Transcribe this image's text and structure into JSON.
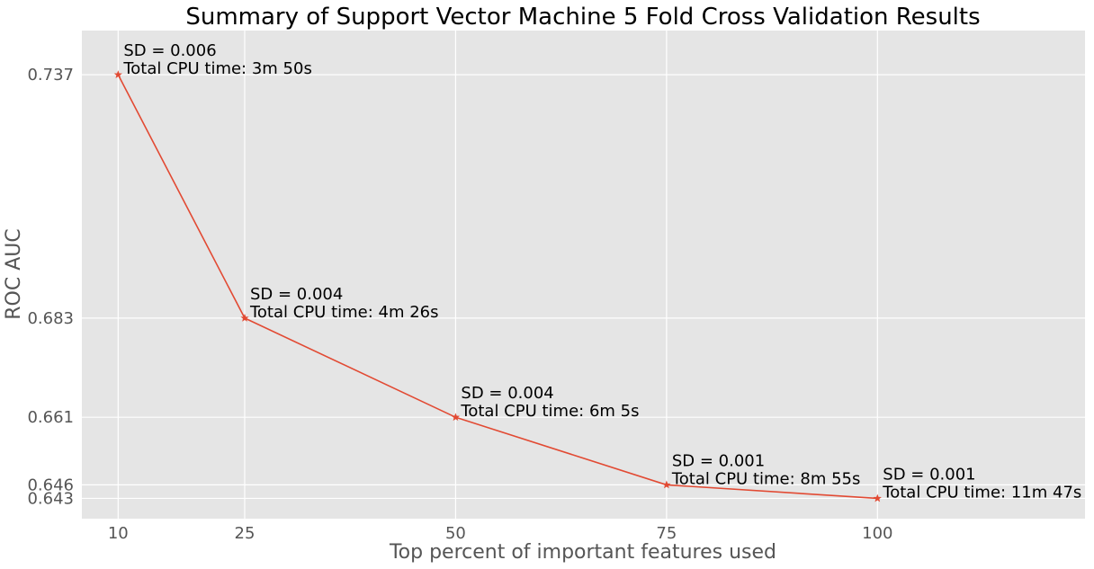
{
  "chart_data": {
    "type": "line",
    "title": "Summary of Support Vector Machine 5 Fold Cross Validation Results",
    "xlabel": "Top percent of important features used",
    "ylabel": "ROC AUC",
    "x": [
      10,
      25,
      50,
      75,
      100
    ],
    "xticks": [
      "10",
      "25",
      "50",
      "75",
      "100"
    ],
    "yticks": [
      "0.737",
      "0.683",
      "0.661",
      "0.646",
      "0.643"
    ],
    "ytick_values": [
      0.737,
      0.683,
      0.661,
      0.646,
      0.643
    ],
    "xlim": [
      5.7,
      124.6
    ],
    "ylim": [
      0.6385,
      0.7468
    ],
    "grid": true,
    "series": [
      {
        "name": "ROC AUC",
        "marker": "star",
        "values": [
          0.737,
          0.683,
          0.661,
          0.646,
          0.643
        ]
      }
    ],
    "annotations": [
      {
        "x": 10,
        "y": 0.737,
        "sd": "SD = 0.006",
        "cpu": "Total CPU time: 3m 50s"
      },
      {
        "x": 25,
        "y": 0.683,
        "sd": "SD = 0.004",
        "cpu": "Total CPU time: 4m 26s"
      },
      {
        "x": 50,
        "y": 0.661,
        "sd": "SD = 0.004",
        "cpu": "Total CPU time: 6m 5s"
      },
      {
        "x": 75,
        "y": 0.646,
        "sd": "SD = 0.001",
        "cpu": "Total CPU time: 8m 55s"
      },
      {
        "x": 100,
        "y": 0.643,
        "sd": "SD = 0.001",
        "cpu": "Total CPU time: 11m 47s"
      }
    ]
  },
  "colors": {
    "plot_background": "#e5e5e5",
    "grid": "#ffffff",
    "line": "#e24a33"
  }
}
